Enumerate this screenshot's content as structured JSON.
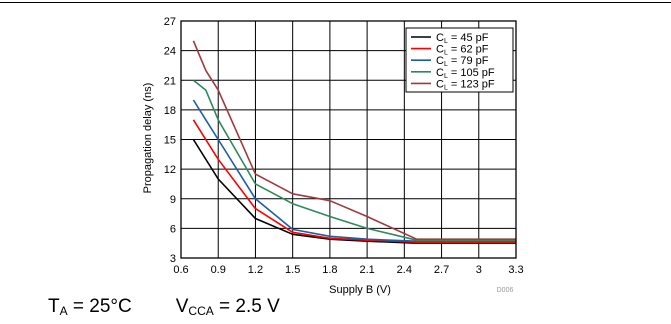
{
  "chart_data": {
    "type": "line",
    "title": "",
    "xlabel": "Supply B (V)",
    "ylabel": "Propagation delay (ns)",
    "xlim": [
      0.6,
      3.3
    ],
    "ylim": [
      3,
      27
    ],
    "xticks": [
      "0.6",
      "0.9",
      "1.2",
      "1.5",
      "1.8",
      "2.1",
      "2.4",
      "2.7",
      "3",
      "3.3"
    ],
    "yticks": [
      "3",
      "6",
      "9",
      "12",
      "15",
      "18",
      "21",
      "24",
      "27"
    ],
    "grid": true,
    "legend_position": "top-right",
    "figure_id": "D006",
    "series": [
      {
        "name_main": "C",
        "name_sub": "L",
        "name_rest": " = 45 pF",
        "color": "#000000",
        "points": [
          [
            0.7,
            15
          ],
          [
            0.9,
            11
          ],
          [
            1.2,
            7
          ],
          [
            1.5,
            5.4
          ],
          [
            1.8,
            4.9
          ],
          [
            2.1,
            4.7
          ],
          [
            2.5,
            4.5
          ],
          [
            3.0,
            4.5
          ],
          [
            3.3,
            4.5
          ]
        ]
      },
      {
        "name_main": "C",
        "name_sub": "L",
        "name_rest": " = 62 pF",
        "color": "#ff0000",
        "points": [
          [
            0.7,
            17
          ],
          [
            0.9,
            13
          ],
          [
            1.2,
            8
          ],
          [
            1.5,
            5.6
          ],
          [
            1.8,
            5.0
          ],
          [
            2.1,
            4.8
          ],
          [
            2.5,
            4.6
          ],
          [
            3.0,
            4.6
          ],
          [
            3.3,
            4.6
          ]
        ]
      },
      {
        "name_main": "C",
        "name_sub": "L",
        "name_rest": " = 79 pF",
        "color": "#1c5fa6",
        "points": [
          [
            0.7,
            19
          ],
          [
            0.8,
            17
          ],
          [
            0.9,
            15
          ],
          [
            1.2,
            9
          ],
          [
            1.5,
            5.9
          ],
          [
            1.8,
            5.2
          ],
          [
            2.1,
            4.9
          ],
          [
            2.5,
            4.7
          ],
          [
            3.0,
            4.7
          ],
          [
            3.3,
            4.7
          ]
        ]
      },
      {
        "name_main": "C",
        "name_sub": "L",
        "name_rest": " = 105 pF",
        "color": "#2e8a5a",
        "points": [
          [
            0.7,
            21
          ],
          [
            0.8,
            20
          ],
          [
            0.9,
            17
          ],
          [
            1.2,
            10.5
          ],
          [
            1.5,
            8.5
          ],
          [
            1.8,
            7.2
          ],
          [
            2.1,
            6.0
          ],
          [
            2.5,
            4.8
          ],
          [
            3.0,
            4.8
          ],
          [
            3.3,
            4.8
          ]
        ]
      },
      {
        "name_main": "C",
        "name_sub": "L",
        "name_rest": " = 123 pF",
        "color": "#a0393e",
        "points": [
          [
            0.7,
            25
          ],
          [
            0.8,
            22
          ],
          [
            0.9,
            20
          ],
          [
            1.2,
            11.5
          ],
          [
            1.5,
            9.5
          ],
          [
            1.8,
            8.8
          ],
          [
            2.1,
            7.2
          ],
          [
            2.5,
            4.9
          ],
          [
            3.0,
            4.9
          ],
          [
            3.3,
            4.9
          ]
        ]
      }
    ]
  },
  "conditions": {
    "ta_main": "T",
    "ta_sub": "A",
    "ta_rest": " = 25°C",
    "vcca_main": "V",
    "vcca_sub": "CCA",
    "vcca_rest": " = 2.5 V"
  }
}
